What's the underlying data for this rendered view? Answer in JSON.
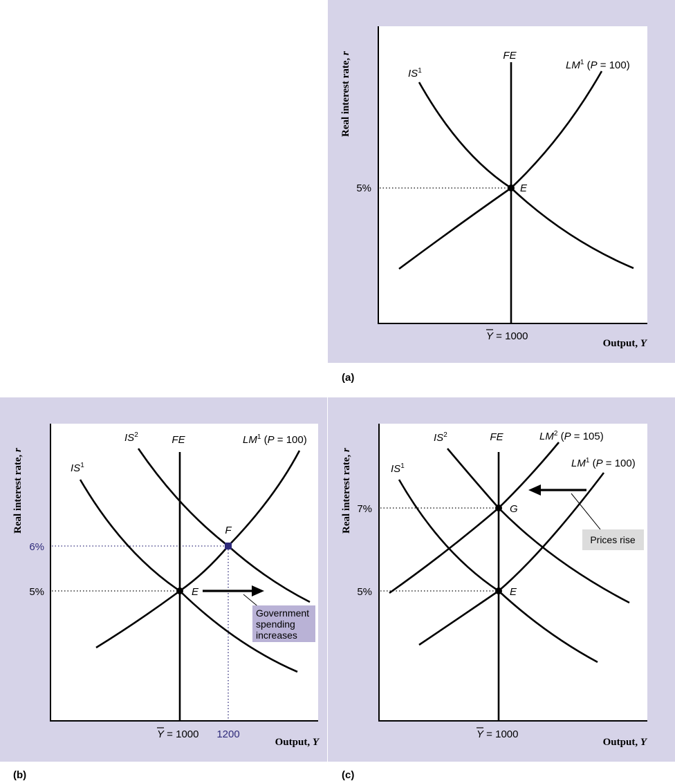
{
  "y_axis_title": "Real interest rate, ",
  "y_axis_var": "r",
  "x_axis_title": "Output, ",
  "x_axis_var": "Y",
  "ybar_symbol": "Y",
  "ybar_value": " = 1000",
  "panel_a": {
    "label": "(a)",
    "rate_tick": "5%",
    "fe": "FE",
    "is1_base": "IS",
    "is1_sup": "1",
    "lm1_base": "LM",
    "lm1_sup": "1",
    "lm1_open": " (",
    "lm1_p": "P",
    "lm1_rest": " = 100)",
    "point_e": "E"
  },
  "panel_b": {
    "label": "(b)",
    "rate_tick_high": "6%",
    "rate_tick_low": "5%",
    "x_tick": "1200",
    "fe": "FE",
    "is1_base": "IS",
    "is1_sup": "1",
    "is2_base": "IS",
    "is2_sup": "2",
    "lm1_base": "LM",
    "lm1_sup": "1",
    "lm1_open": " (",
    "lm1_p": "P",
    "lm1_rest": " = 100)",
    "point_e": "E",
    "point_f": "F",
    "note_lines": [
      "Government",
      "spending",
      "increases"
    ]
  },
  "panel_c": {
    "label": "(c)",
    "rate_tick_high": "7%",
    "rate_tick_low": "5%",
    "fe": "FE",
    "is1_base": "IS",
    "is1_sup": "1",
    "is2_base": "IS",
    "is2_sup": "2",
    "lm1_base": "LM",
    "lm1_sup": "1",
    "lm1_open": " (",
    "lm1_p": "P",
    "lm1_rest": " = 100)",
    "lm2_base": "LM",
    "lm2_sup": "2",
    "lm2_open": " (",
    "lm2_p": "P",
    "lm2_rest": " = 105)",
    "point_e": "E",
    "point_g": "G",
    "note": "Prices rise"
  },
  "colors": {
    "panel_background": "#d6d3e8",
    "highlight_point": "#2e2a7a",
    "note_b_background": "#b9b2d6",
    "note_c_background": "#dcdcdc"
  }
}
